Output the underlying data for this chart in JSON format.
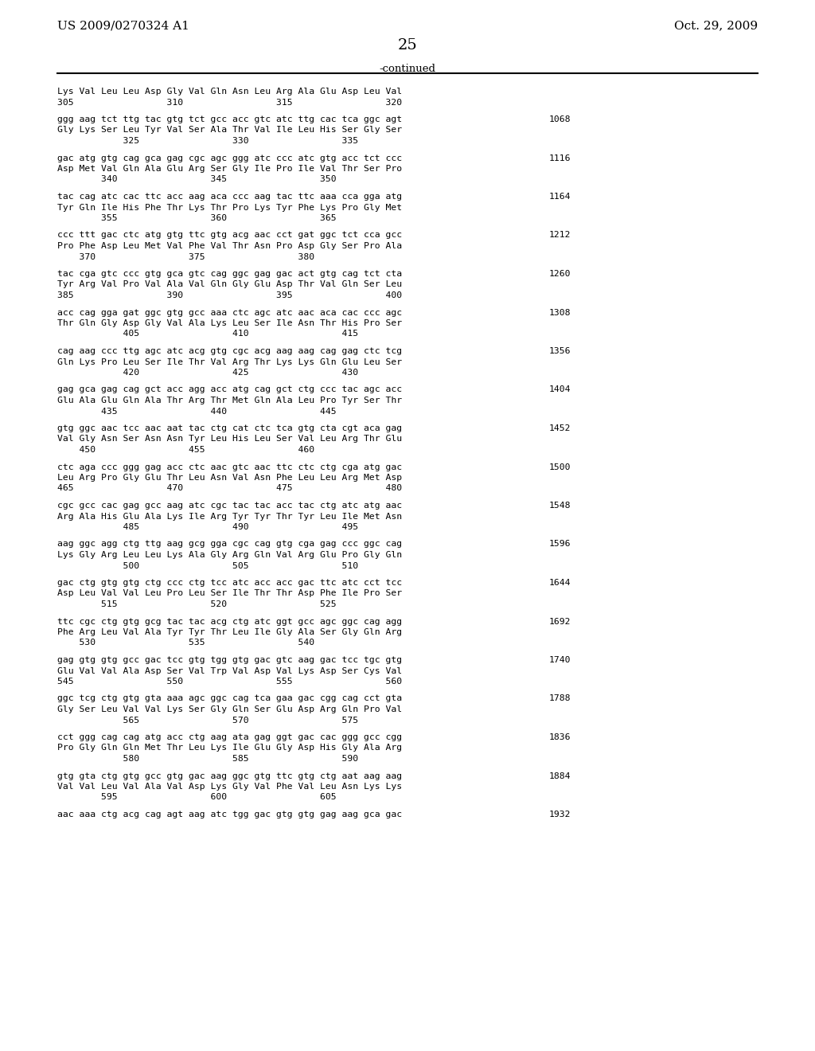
{
  "header_left": "US 2009/0270324 A1",
  "header_right": "Oct. 29, 2009",
  "page_number": "25",
  "continued_label": "-continued",
  "background_color": "#ffffff",
  "text_color": "#000000",
  "font_family": "monospace",
  "content": [
    {
      "type": "aa_header",
      "line1": "Lys Val Leu Leu Asp Gly Val Gln Asn Leu Arg Ala Glu Asp Leu Val",
      "line2": "305                 310                 315                 320"
    },
    {
      "type": "block",
      "num": 1068,
      "dna": "ggg aag tct ttg tac gtg tct gcc acc gtc atc ttg cac tca ggc agt",
      "aa": "Gly Lys Ser Leu Tyr Val Ser Ala Thr Val Ile Leu His Ser Gly Ser",
      "pos": "            325                 330                 335"
    },
    {
      "type": "block",
      "num": 1116,
      "dna": "gac atg gtg cag gca gag cgc agc ggg atc ccc atc gtg acc tct ccc",
      "aa": "Asp Met Val Gln Ala Glu Arg Ser Gly Ile Pro Ile Val Thr Ser Pro",
      "pos": "        340                 345                 350"
    },
    {
      "type": "block",
      "num": 1164,
      "dna": "tac cag atc cac ttc acc aag aca ccc aag tac ttc aaa cca gga atg",
      "aa": "Tyr Gln Ile His Phe Thr Lys Thr Pro Lys Tyr Phe Lys Pro Gly Met",
      "pos": "        355                 360                 365"
    },
    {
      "type": "block",
      "num": 1212,
      "dna": "ccc ttt gac ctc atg gtg ttc gtg acg aac cct gat ggc tct cca gcc",
      "aa": "Pro Phe Asp Leu Met Val Phe Val Thr Asn Pro Asp Gly Ser Pro Ala",
      "pos": "    370                 375                 380"
    },
    {
      "type": "block",
      "num": 1260,
      "dna": "tac cga gtc ccc gtg gca gtc cag ggc gag gac act gtg cag tct cta",
      "aa": "Tyr Arg Val Pro Val Ala Val Gln Gly Glu Asp Thr Val Gln Ser Leu",
      "pos": "385                 390                 395                 400"
    },
    {
      "type": "block",
      "num": 1308,
      "dna": "acc cag gga gat ggc gtg gcc aaa ctc agc atc aac aca cac ccc agc",
      "aa": "Thr Gln Gly Asp Gly Val Ala Lys Leu Ser Ile Asn Thr His Pro Ser",
      "pos": "            405                 410                 415"
    },
    {
      "type": "block",
      "num": 1356,
      "dna": "cag aag ccc ttg agc atc acg gtg cgc acg aag aag cag gag ctc tcg",
      "aa": "Gln Lys Pro Leu Ser Ile Thr Val Arg Thr Lys Lys Gln Glu Leu Ser",
      "pos": "            420                 425                 430"
    },
    {
      "type": "block",
      "num": 1404,
      "dna": "gag gca gag cag gct acc agg acc atg cag gct ctg ccc tac agc acc",
      "aa": "Glu Ala Glu Gln Ala Thr Arg Thr Met Gln Ala Leu Pro Tyr Ser Thr",
      "pos": "        435                 440                 445"
    },
    {
      "type": "block",
      "num": 1452,
      "dna": "gtg ggc aac tcc aac aat tac ctg cat ctc tca gtg cta cgt aca gag",
      "aa": "Val Gly Asn Ser Asn Asn Tyr Leu His Leu Ser Val Leu Arg Thr Glu",
      "pos": "    450                 455                 460"
    },
    {
      "type": "block",
      "num": 1500,
      "dna": "ctc aga ccc ggg gag acc ctc aac gtc aac ttc ctc ctg cga atg gac",
      "aa": "Leu Arg Pro Gly Glu Thr Leu Asn Val Asn Phe Leu Leu Arg Met Asp",
      "pos": "465                 470                 475                 480"
    },
    {
      "type": "block",
      "num": 1548,
      "dna": "cgc gcc cac gag gcc aag atc cgc tac tac acc tac ctg atc atg aac",
      "aa": "Arg Ala His Glu Ala Lys Ile Arg Tyr Tyr Thr Tyr Leu Ile Met Asn",
      "pos": "            485                 490                 495"
    },
    {
      "type": "block",
      "num": 1596,
      "dna": "aag ggc agg ctg ttg aag gcg gga cgc cag gtg cga gag ccc ggc cag",
      "aa": "Lys Gly Arg Leu Leu Lys Ala Gly Arg Gln Val Arg Glu Pro Gly Gln",
      "pos": "            500                 505                 510"
    },
    {
      "type": "block",
      "num": 1644,
      "dna": "gac ctg gtg gtg ctg ccc ctg tcc atc acc acc gac ttc atc cct tcc",
      "aa": "Asp Leu Val Val Leu Pro Leu Ser Ile Thr Thr Asp Phe Ile Pro Ser",
      "pos": "        515                 520                 525"
    },
    {
      "type": "block",
      "num": 1692,
      "dna": "ttc cgc ctg gtg gcg tac tac acg ctg atc ggt gcc agc ggc cag agg",
      "aa": "Phe Arg Leu Val Ala Tyr Tyr Thr Leu Ile Gly Ala Ser Gly Gln Arg",
      "pos": "    530                 535                 540"
    },
    {
      "type": "block",
      "num": 1740,
      "dna": "gag gtg gtg gcc gac tcc gtg tgg gtg gac gtc aag gac tcc tgc gtg",
      "aa": "Glu Val Val Ala Asp Ser Val Trp Val Asp Val Lys Asp Ser Cys Val",
      "pos": "545                 550                 555                 560"
    },
    {
      "type": "block",
      "num": 1788,
      "dna": "ggc tcg ctg gtg gta aaa agc ggc cag tca gaa gac cgg cag cct gta",
      "aa": "Gly Ser Leu Val Val Lys Ser Gly Gln Ser Glu Asp Arg Gln Pro Val",
      "pos": "            565                 570                 575"
    },
    {
      "type": "block",
      "num": 1836,
      "dna": "cct ggg cag cag atg acc ctg aag ata gag ggt gac cac ggg gcc cgg",
      "aa": "Pro Gly Gln Gln Met Thr Leu Lys Ile Glu Gly Asp His Gly Ala Arg",
      "pos": "            580                 585                 590"
    },
    {
      "type": "block",
      "num": 1884,
      "dna": "gtg gta ctg gtg gcc gtg gac aag ggc gtg ttc gtg ctg aat aag aag",
      "aa": "Val Val Leu Val Ala Val Asp Lys Gly Val Phe Val Leu Asn Lys Lys",
      "pos": "        595                 600                 605"
    },
    {
      "type": "block_dna_only",
      "num": 1932,
      "dna": "aac aaa ctg acg cag agt aag atc tgg gac gtg gtg gag aag gca gac",
      "aa": "",
      "pos": ""
    }
  ]
}
